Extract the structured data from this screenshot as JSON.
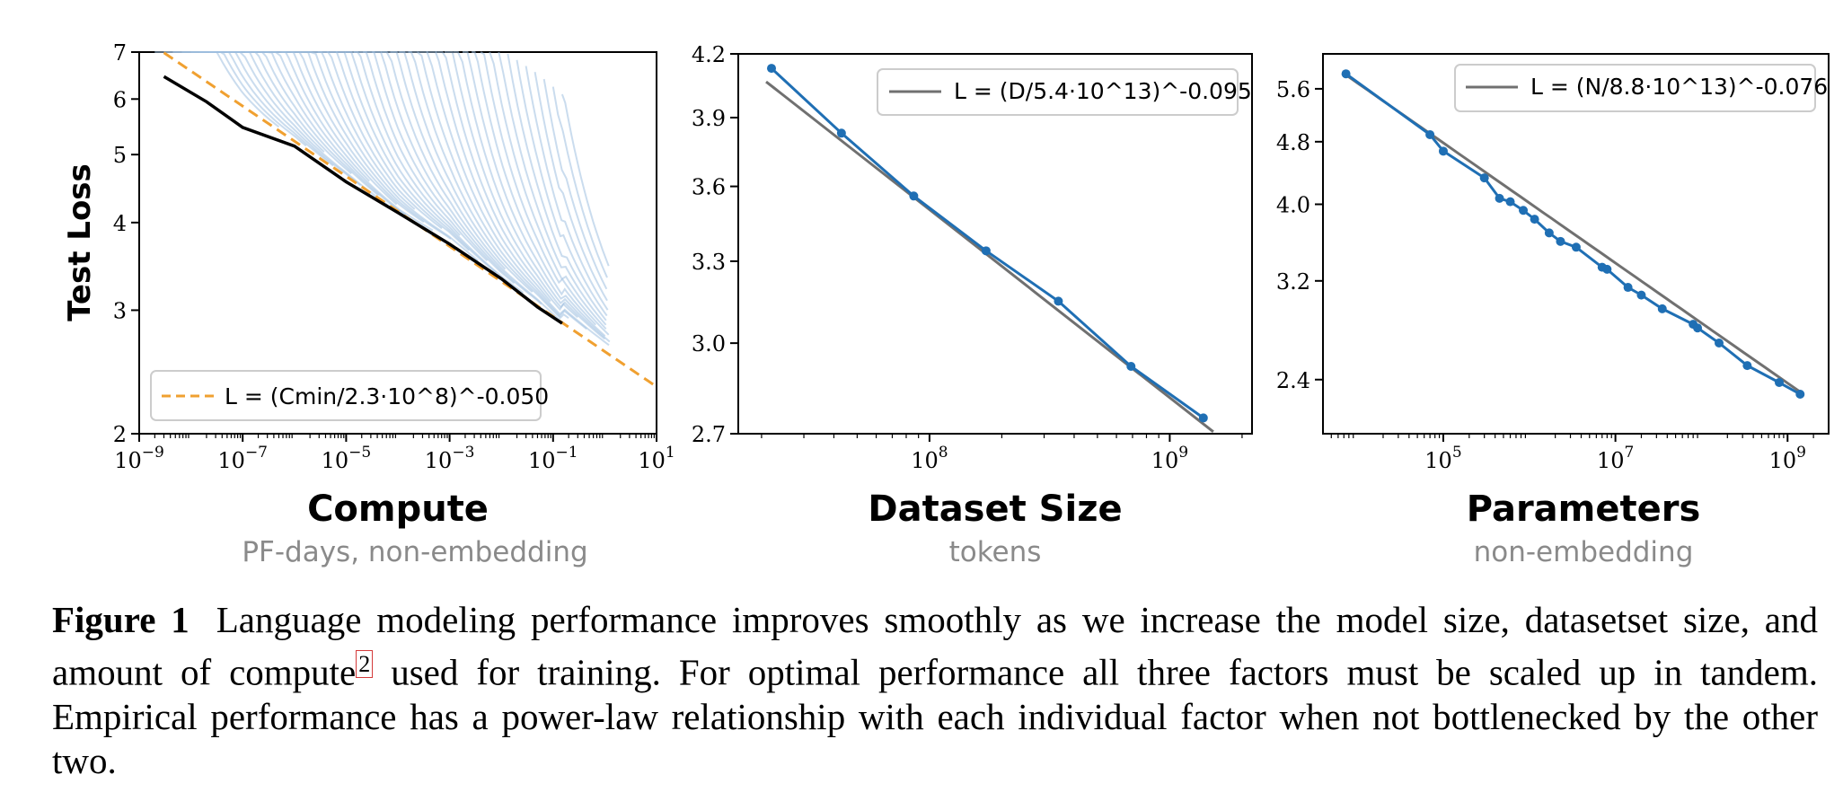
{
  "chart_data": [
    {
      "type": "line",
      "xscale": "log",
      "yscale": "log",
      "xlim": [
        1e-09,
        10
      ],
      "ylim": [
        2,
        7
      ],
      "ylabel": "Test Loss",
      "xlabel": "Compute",
      "xsublabel": "PF-days, non-embedding",
      "x_ticks": [
        "10^-9",
        "10^-7",
        "10^-5",
        "10^-3",
        "10^-1",
        "10^1"
      ],
      "y_ticks": [
        "2",
        "3",
        "4",
        "5",
        "6",
        "7"
      ],
      "legend": {
        "position": "lower-left",
        "label": "L = (Cmin/2.3·10^8)^-0.050"
      },
      "fit": {
        "name": "L = (Cmin/2.3·10^8)^-0.050",
        "scale": 230000000.0,
        "exponent": -0.05,
        "color": "#f0a030",
        "style": "dashed"
      },
      "frontier_color": "#000000",
      "runs_color": "#9fc0e0",
      "frontier_x": [
        3e-09,
        2e-08,
        1e-07,
        1e-06,
        1e-05,
        0.0001,
        0.001,
        0.01,
        0.05,
        0.15
      ],
      "frontier_y": [
        6.5,
        5.9,
        5.5,
        5.1,
        4.6,
        4.1,
        3.75,
        3.3,
        3.05,
        2.85
      ]
    },
    {
      "type": "line",
      "xscale": "log",
      "yscale": "log",
      "xlim": [
        16000000.0,
        2200000000.0
      ],
      "ylim": [
        2.7,
        4.2
      ],
      "xlabel": "Dataset Size",
      "xsublabel": "tokens",
      "x_ticks": [
        "10^8",
        "10^9"
      ],
      "y_ticks": [
        "2.7",
        "3.0",
        "3.3",
        "3.6",
        "3.9",
        "4.2"
      ],
      "legend": {
        "position": "top-right",
        "label": "L = (D/5.4·10^13)^-0.095"
      },
      "fit": {
        "name": "L = (D/5.4·10^13)^-0.095",
        "scale": 54000000000000.0,
        "exponent": -0.095,
        "color": "#707070"
      },
      "series_color": "#1f6fb4",
      "x": [
        22000000.0,
        43000000.0,
        86000000.0,
        172000000.0,
        344000000.0,
        690000000.0,
        1380000000.0
      ],
      "y": [
        4.13,
        3.83,
        3.56,
        3.34,
        3.15,
        2.92,
        2.75
      ]
    },
    {
      "type": "line",
      "xscale": "log",
      "yscale": "log",
      "xlim": [
        4000.0,
        3000000000.0
      ],
      "ylim": [
        2.05,
        6.2
      ],
      "xlabel": "Parameters",
      "xsublabel": "non-embedding",
      "x_ticks": [
        "10^5",
        "10^7",
        "10^9"
      ],
      "y_ticks": [
        "2.4",
        "3.2",
        "4.0",
        "4.8",
        "5.6"
      ],
      "legend": {
        "position": "top-right",
        "label": "L = (N/8.8·10^13)^-0.076"
      },
      "fit": {
        "name": "L = (N/8.8·10^13)^-0.076",
        "scale": 88000000000000.0,
        "exponent": -0.076,
        "color": "#707070"
      },
      "series_color": "#1f6fb4",
      "x": [
        7400.0,
        70000.0,
        100000.0,
        300000.0,
        450000.0,
        600000.0,
        850000.0,
        1150000.0,
        1700000.0,
        2300000.0,
        3500000.0,
        7000000.0,
        8000000.0,
        14000000.0,
        20000000.0,
        35000000.0,
        80000000.0,
        90000000.0,
        160000000.0,
        340000000.0,
        800000000.0,
        1400000000.0
      ],
      "y": [
        5.85,
        4.9,
        4.67,
        4.32,
        4.07,
        4.03,
        3.93,
        3.83,
        3.68,
        3.59,
        3.53,
        3.33,
        3.31,
        3.14,
        3.07,
        2.95,
        2.82,
        2.79,
        2.67,
        2.5,
        2.38,
        2.3
      ]
    }
  ],
  "caption": {
    "label": "Figure 1",
    "text_before": "Language modeling performance improves smoothly as we increase the model size, datasetset size, and amount of compute",
    "footnote": "2",
    "text_after": "used for training. For optimal performance all three factors must be scaled up in tandem. Empirical performance has a power-law relationship with each individual factor when not bottlenecked by the other two."
  }
}
